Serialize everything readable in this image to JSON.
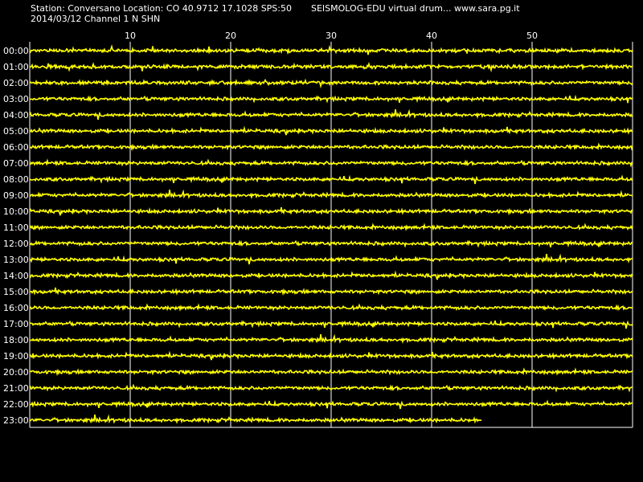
{
  "header": {
    "station_line": "Station: Conversano Location: CO 40.9712 17.1028 SPS:50",
    "date_line": "2014/03/12  Channel 1 N SHN",
    "right_line": "SEISMOLOG-EDU virtual drum... www.sara.pg.it"
  },
  "colors": {
    "background": "#000000",
    "trace": "#ffff00",
    "grid": "#ffffff",
    "text": "#ffffff"
  },
  "chart_data": {
    "type": "line",
    "title": "",
    "xlabel": "",
    "ylabel": "",
    "xlim": [
      0,
      60
    ],
    "x_ticks": [
      10,
      20,
      30,
      40,
      50
    ],
    "hours": [
      "00:00",
      "01:00",
      "02:00",
      "03:00",
      "04:00",
      "05:00",
      "06:00",
      "07:00",
      "08:00",
      "09:00",
      "10:00",
      "11:00",
      "12:00",
      "13:00",
      "14:00",
      "15:00",
      "16:00",
      "17:00",
      "18:00",
      "19:00",
      "20:00",
      "21:00",
      "22:00",
      "23:00"
    ],
    "trace_end_minutes": [
      60,
      60,
      60,
      60,
      60,
      60,
      60,
      60,
      60,
      60,
      60,
      60,
      60,
      60,
      60,
      60,
      60,
      60,
      60,
      60,
      60,
      60,
      60,
      45
    ],
    "grid": true
  }
}
